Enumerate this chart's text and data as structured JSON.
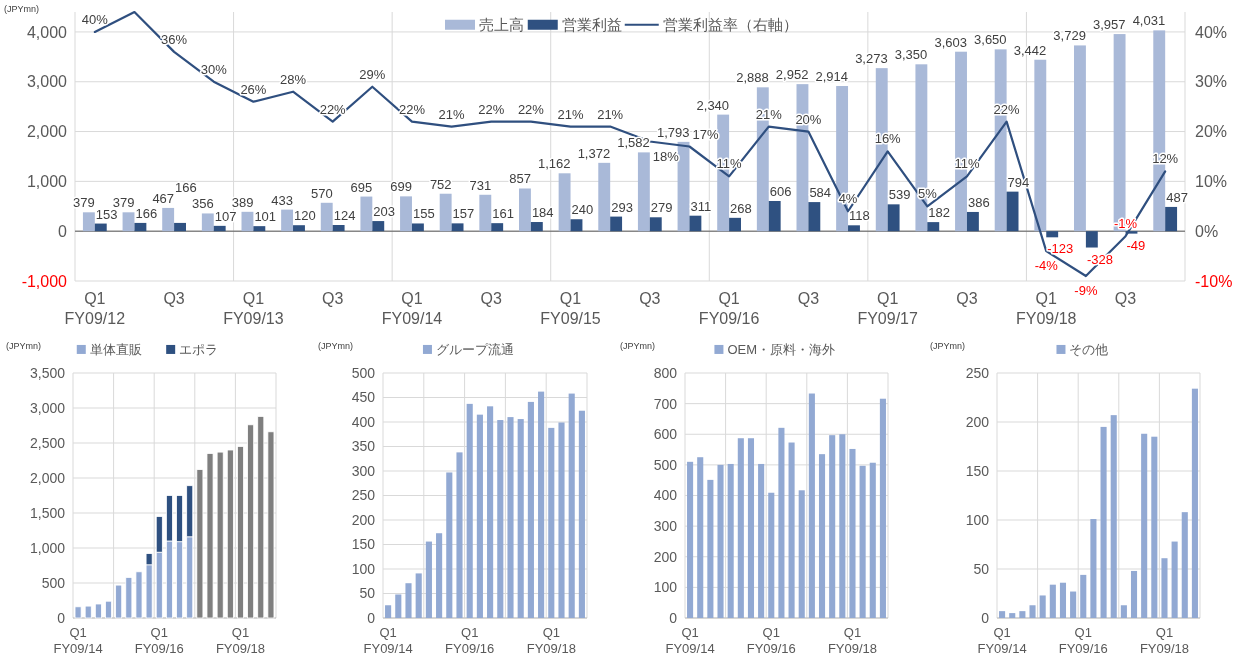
{
  "chart_data": [
    {
      "type": "bar",
      "ylabel": "(JPYmn)",
      "categories": [
        "Q1\nFY09/12",
        null,
        "Q3",
        null,
        "Q1\nFY09/13",
        null,
        "Q3",
        null,
        "Q1\nFY09/14",
        null,
        "Q3",
        null,
        "Q1\nFY09/15",
        null,
        "Q3",
        null,
        "Q1\nFY09/16",
        null,
        "Q3",
        null,
        "Q1\nFY09/17",
        null,
        "Q3",
        null,
        "Q1\nFY09/18",
        null,
        "Q3",
        null
      ],
      "series": [
        {
          "name": "売上高",
          "color": "#a9b9d8",
          "values": [
            379,
            379,
            467,
            356,
            389,
            433,
            570,
            695,
            699,
            752,
            731,
            857,
            1162,
            1372,
            1582,
            1793,
            2340,
            2888,
            2952,
            2914,
            3273,
            3350,
            3603,
            3650,
            3442,
            3729,
            3957,
            4031
          ],
          "value_labels": [
            "379",
            "379",
            "467",
            "356",
            "389",
            "433",
            "570",
            "695",
            "699",
            "752",
            "731",
            "857",
            "1,162",
            "1,372",
            "1,582",
            "1,793",
            "2,340",
            "2,888",
            "2,952",
            "2,914",
            "3,273",
            "3,350",
            "3,603",
            "3,650",
            "3,442",
            "3,729",
            "3,957",
            "4,031"
          ]
        },
        {
          "name": "営業利益",
          "color": "#2f5181",
          "values": [
            153,
            166,
            166,
            107,
            101,
            120,
            124,
            203,
            155,
            157,
            161,
            184,
            240,
            293,
            279,
            311,
            268,
            606,
            584,
            118,
            539,
            182,
            386,
            794,
            -123,
            -328,
            -49,
            487
          ],
          "value_labels": [
            "153",
            "166",
            "166",
            "107",
            "101",
            "120",
            "124",
            "203",
            "155",
            "157",
            "161",
            "184",
            "240",
            "293",
            "279",
            "311",
            "268",
            "606",
            "584",
            "118",
            "539",
            "182",
            "386",
            "794",
            "-123",
            "-328",
            "-49",
            "487"
          ]
        },
        {
          "name": "営業利益率（右軸）",
          "type": "line",
          "axis": "y2",
          "color": "#2f4f7f",
          "values": [
            40,
            44,
            36,
            30,
            26,
            28,
            22,
            29,
            22,
            21,
            22,
            22,
            21,
            21,
            18,
            17,
            11,
            21,
            20,
            4,
            16,
            5,
            11,
            22,
            -4,
            -9,
            -1,
            12
          ],
          "value_labels": [
            "40%",
            null,
            "36%",
            "30%",
            "26%",
            "28%",
            "22%",
            "29%",
            "22%",
            "21%",
            "22%",
            "22%",
            "21%",
            "21%",
            "18%",
            "17%",
            "11%",
            "21%",
            "20%",
            "4%",
            "16%",
            "5%",
            "11%",
            "22%",
            "-4%",
            "-9%",
            "-1%",
            "12%"
          ]
        }
      ],
      "ylim": [
        -1000,
        4400
      ],
      "yticks": [
        {
          "value": -1000,
          "label": "-1,000"
        },
        0,
        {
          "value": 1000,
          "label": "1,000"
        },
        {
          "value": 2000,
          "label": "2,000"
        },
        {
          "value": 3000,
          "label": "3,000"
        },
        {
          "value": 4000,
          "label": "4,000"
        }
      ],
      "y2lim": [
        -10,
        44
      ],
      "y2ticks": [
        {
          "value": -10,
          "label": "-10%"
        },
        {
          "value": 0,
          "label": "0%"
        },
        {
          "value": 10,
          "label": "10%"
        },
        {
          "value": 20,
          "label": "20%"
        },
        {
          "value": 30,
          "label": "30%"
        },
        {
          "value": 40,
          "label": "40%"
        }
      ],
      "grid": true,
      "legend": "top"
    },
    {
      "type": "bar",
      "stacked": true,
      "ylabel": "(JPYmn)",
      "categories": [
        "Q1\nFY09/14",
        null,
        null,
        null,
        null,
        null,
        null,
        null,
        "Q1\nFY09/16",
        null,
        null,
        null,
        null,
        null,
        null,
        null,
        "Q1\nFY09/18",
        null,
        null,
        null
      ],
      "series": [
        {
          "name": "単体直販",
          "color": "#92a9d3",
          "colors": [
            "#92a9d3",
            "#92a9d3",
            "#92a9d3",
            "#92a9d3",
            "#92a9d3",
            "#92a9d3",
            "#92a9d3",
            "#92a9d3",
            "#92a9d3",
            "#92a9d3",
            "#92a9d3",
            "#92a9d3",
            "#7f7f7f",
            "#7f7f7f",
            "#7f7f7f",
            "#7f7f7f",
            "#7f7f7f",
            "#7f7f7f",
            "#7f7f7f",
            "#7f7f7f"
          ],
          "values": [
            160,
            170,
            200,
            240,
            470,
            580,
            660,
            760,
            940,
            1100,
            1090,
            1160,
            2120,
            2350,
            2370,
            2400,
            2450,
            2760,
            2880,
            2660
          ]
        },
        {
          "name": "エポラ",
          "color": "#2e5080",
          "values": [
            null,
            null,
            null,
            null,
            null,
            null,
            null,
            160,
            510,
            650,
            660,
            730,
            null,
            null,
            null,
            null,
            null,
            null,
            null,
            null
          ]
        }
      ],
      "ylim": [
        0,
        3500
      ],
      "yticks": [
        0,
        500,
        {
          "value": 1000,
          "label": "1,000"
        },
        {
          "value": 1500,
          "label": "1,500"
        },
        {
          "value": 2000,
          "label": "2,000"
        },
        {
          "value": 2500,
          "label": "2,500"
        },
        {
          "value": 3000,
          "label": "3,000"
        },
        {
          "value": 3500,
          "label": "3,500"
        }
      ],
      "grid": true,
      "legend": "top"
    },
    {
      "type": "bar",
      "ylabel": "(JPYmn)",
      "categories": [
        "Q1\nFY09/14",
        null,
        null,
        null,
        null,
        null,
        null,
        null,
        "Q1\nFY09/16",
        null,
        null,
        null,
        null,
        null,
        null,
        null,
        "Q1\nFY09/18",
        null,
        null,
        null
      ],
      "series": [
        {
          "name": "グループ流通",
          "color": "#92a9d3",
          "values": [
            26,
            48,
            71,
            91,
            156,
            173,
            297,
            338,
            437,
            415,
            432,
            404,
            410,
            406,
            441,
            462,
            388,
            399,
            458,
            423
          ]
        }
      ],
      "ylim": [
        0,
        500
      ],
      "yticks": [
        0,
        50,
        100,
        150,
        200,
        250,
        300,
        350,
        400,
        450,
        500
      ],
      "grid": true,
      "legend": "top"
    },
    {
      "type": "bar",
      "ylabel": "(JPYmn)",
      "categories": [
        "Q1\nFY09/14",
        null,
        null,
        null,
        null,
        null,
        null,
        null,
        "Q1\nFY09/16",
        null,
        null,
        null,
        null,
        null,
        null,
        null,
        "Q1\nFY09/18",
        null,
        null,
        null
      ],
      "series": [
        {
          "name": "OEM・原料・海外",
          "color": "#92a9d3",
          "values": [
            510,
            525,
            451,
            500,
            503,
            587,
            587,
            503,
            409,
            621,
            573,
            417,
            733,
            535,
            597,
            600,
            552,
            497,
            507,
            716
          ]
        }
      ],
      "ylim": [
        0,
        800
      ],
      "yticks": [
        0,
        100,
        200,
        300,
        400,
        500,
        600,
        700,
        800
      ],
      "grid": true,
      "legend": "top"
    },
    {
      "type": "bar",
      "ylabel": "(JPYmn)",
      "categories": [
        "Q1\nFY09/14",
        null,
        null,
        null,
        null,
        null,
        null,
        null,
        "Q1\nFY09/16",
        null,
        null,
        null,
        null,
        null,
        null,
        null,
        "Q1\nFY09/18",
        null,
        null,
        null
      ],
      "series": [
        {
          "name": "その他",
          "color": "#92a9d3",
          "values": [
            7,
            5,
            7,
            13,
            23,
            34,
            36,
            27,
            44,
            101,
            195,
            207,
            13,
            48,
            188,
            185,
            61,
            78,
            108,
            234
          ]
        }
      ],
      "ylim": [
        0,
        250
      ],
      "yticks": [
        0,
        50,
        100,
        150,
        200,
        250
      ],
      "grid": true,
      "legend": "top"
    }
  ]
}
